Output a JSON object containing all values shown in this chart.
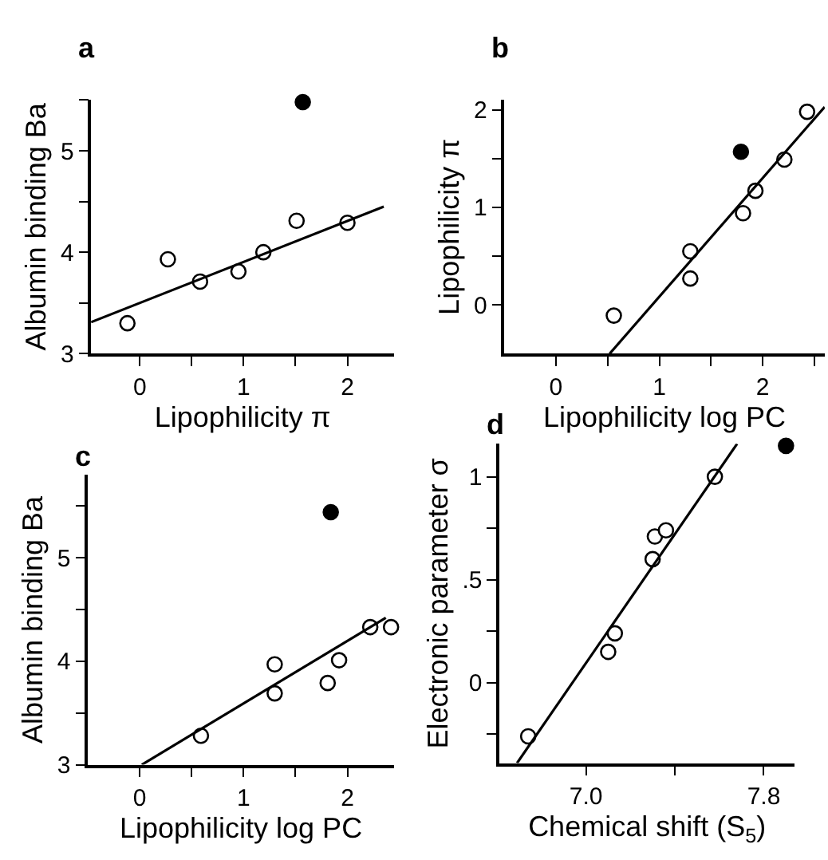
{
  "chart_data": [
    {
      "type": "scatter",
      "title": "a",
      "xlabel": "Lipophilicity π",
      "ylabel": "Albumin binding Ba",
      "xlim": [
        -0.47,
        2.45
      ],
      "ylim": [
        3,
        5.5
      ],
      "xticks": [
        0,
        {
          "value": 0.5,
          "label": null
        },
        1,
        {
          "value": 1.5,
          "label": null
        },
        2
      ],
      "yticks": [
        3,
        {
          "value": 3.5,
          "label": null
        },
        4,
        {
          "value": 4.5,
          "label": null
        },
        5,
        {
          "value": 5.5,
          "label": null
        }
      ],
      "grid": false,
      "series": [
        {
          "marker": "circle",
          "color": "#ffffff",
          "x": [
            -0.12,
            0.27,
            0.58,
            0.95,
            1.19,
            1.51,
            2.0
          ],
          "values": [
            3.3,
            3.93,
            3.71,
            3.81,
            4.0,
            4.31,
            4.29
          ]
        },
        {
          "marker": "circle",
          "color": "#000000",
          "x": [
            1.57
          ],
          "values": [
            5.48
          ]
        },
        {
          "type": "line",
          "marker": "none",
          "color": "#000000",
          "x": [
            -0.47,
            2.35
          ],
          "values": [
            3.31,
            4.45
          ]
        }
      ]
    },
    {
      "type": "scatter",
      "title": "b",
      "xlabel": "Lipophilicity log PC",
      "ylabel": "Lipophilicity π",
      "xlim": [
        -0.5,
        2.6
      ],
      "ylim": [
        -0.5,
        2.1
      ],
      "xticks": [
        0,
        {
          "value": 0.5,
          "label": null
        },
        1,
        {
          "value": 1.5,
          "label": null
        },
        2,
        {
          "value": 2.5,
          "label": null
        }
      ],
      "yticks": [
        0,
        {
          "value": 0.5,
          "label": null
        },
        1,
        {
          "value": 1.5,
          "label": null
        },
        2
      ],
      "grid": false,
      "series": [
        {
          "marker": "circle",
          "color": "#ffffff",
          "x": [
            0.56,
            1.3,
            1.3,
            1.81,
            1.93,
            2.21,
            2.43
          ],
          "values": [
            -0.11,
            0.55,
            0.27,
            0.94,
            1.17,
            1.49,
            1.98
          ]
        },
        {
          "marker": "circle",
          "color": "#000000",
          "x": [
            1.79
          ],
          "values": [
            1.57
          ]
        },
        {
          "type": "line",
          "marker": "none",
          "color": "#000000",
          "x": [
            0.52,
            2.6
          ],
          "values": [
            -0.5,
            2.03
          ]
        }
      ]
    },
    {
      "type": "scatter",
      "title": "c",
      "xlabel": "Lipophilicity log PC",
      "ylabel": "Albumin binding Ba",
      "xlim": [
        -0.5,
        2.45
      ],
      "ylim": [
        3,
        5.8
      ],
      "xticks": [
        0,
        {
          "value": 0.5,
          "label": null
        },
        1,
        {
          "value": 1.5,
          "label": null
        },
        2
      ],
      "yticks": [
        3,
        {
          "value": 3.5,
          "label": null
        },
        4,
        {
          "value": 4.5,
          "label": null
        },
        5,
        {
          "value": 5.5,
          "label": null
        }
      ],
      "grid": false,
      "series": [
        {
          "marker": "circle",
          "color": "#ffffff",
          "x": [
            0.59,
            1.3,
            1.3,
            1.81,
            1.92,
            2.22,
            2.42
          ],
          "values": [
            3.28,
            3.97,
            3.69,
            3.79,
            4.01,
            4.33,
            4.33
          ]
        },
        {
          "marker": "circle",
          "color": "#000000",
          "x": [
            1.84
          ],
          "values": [
            5.44
          ]
        },
        {
          "type": "line",
          "marker": "none",
          "color": "#000000",
          "x": [
            0.02,
            2.37
          ],
          "values": [
            3.0,
            4.42
          ]
        }
      ]
    },
    {
      "type": "scatter",
      "title": "d",
      "xlabel": "Chemical shift (S$_{5}$)",
      "ylabel": "Electronic parameter σ",
      "xlim": [
        6.61,
        7.94
      ],
      "ylim": [
        -0.39,
        1.16
      ],
      "xticks": [
        {
          "value": 7.0,
          "label": "7.0"
        },
        {
          "value": 7.4,
          "label": null
        },
        7.8
      ],
      "yticks": [
        {
          "value": -0.25,
          "label": null
        },
        0,
        {
          "value": 0.25,
          "label": null
        },
        {
          "value": 0.5,
          "label": ".5"
        },
        {
          "value": 0.75,
          "label": null
        },
        1
      ],
      "grid": false,
      "series": [
        {
          "marker": "circle",
          "color": "#ffffff",
          "x": [
            6.74,
            7.1,
            7.13,
            7.3,
            7.31,
            7.36,
            7.58
          ],
          "values": [
            -0.26,
            0.15,
            0.24,
            0.6,
            0.71,
            0.74,
            1.0
          ]
        },
        {
          "marker": "circle",
          "color": "#000000",
          "x": [
            7.9
          ],
          "values": [
            1.15
          ]
        },
        {
          "type": "line",
          "marker": "none",
          "color": "#000000",
          "x": [
            6.69,
            7.68
          ],
          "values": [
            -0.39,
            1.16
          ]
        }
      ]
    }
  ]
}
